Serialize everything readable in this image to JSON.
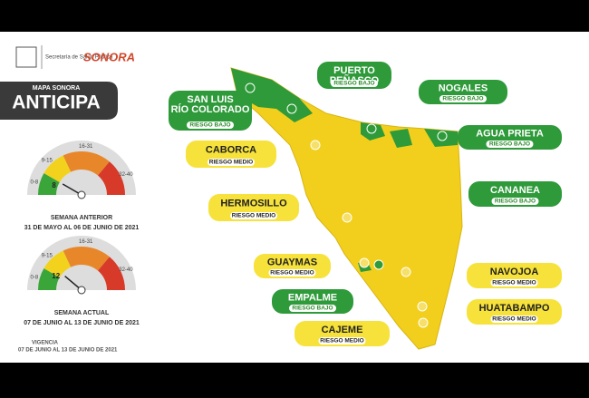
{
  "header": {
    "department": "Secretaría de Salud Pública",
    "state": "SONORA"
  },
  "banner": {
    "subtitle": "MAPA SONORA",
    "title": "ANTICIPA"
  },
  "gauges": [
    {
      "ranges": [
        "0-8",
        "9-15",
        "16-31",
        "32-40"
      ],
      "value": 8,
      "label": "SEMANA ANTERIOR",
      "period": "31 DE MAYO AL 06 DE JUNIO DE 2021"
    },
    {
      "ranges": [
        "0-8",
        "9-15",
        "16-31",
        "32-40"
      ],
      "value": 12,
      "label": "SEMANA ACTUAL",
      "period": "07 DE JUNIO AL 13 DE JUNIO DE 2021"
    }
  ],
  "validity": {
    "label": "VIGENCIA",
    "period": "07 DE JUNIO AL 13 DE JUNIO DE 2021"
  },
  "municipalities": [
    {
      "name": "SAN LUIS RÍO COLORADO",
      "risk": "RIESGO BAJO"
    },
    {
      "name": "PUERTO PEÑASCO",
      "risk": "RIESGO BAJO"
    },
    {
      "name": "NOGALES",
      "risk": "RIESGO BAJO"
    },
    {
      "name": "AGUA PRIETA",
      "risk": "RIESGO BAJO"
    },
    {
      "name": "CANANEA",
      "risk": "RIESGO BAJO"
    },
    {
      "name": "CABORCA",
      "risk": "RIESGO MEDIO"
    },
    {
      "name": "HERMOSILLO",
      "risk": "RIESGO MEDIO"
    },
    {
      "name": "GUAYMAS",
      "risk": "RIESGO MEDIO"
    },
    {
      "name": "EMPALME",
      "risk": "RIESGO BAJO"
    },
    {
      "name": "CAJEME",
      "risk": "RIESGO MEDIO"
    },
    {
      "name": "NAVOJOA",
      "risk": "RIESGO MEDIO"
    },
    {
      "name": "HUATABAMPO",
      "risk": "RIESGO MEDIO"
    }
  ]
}
